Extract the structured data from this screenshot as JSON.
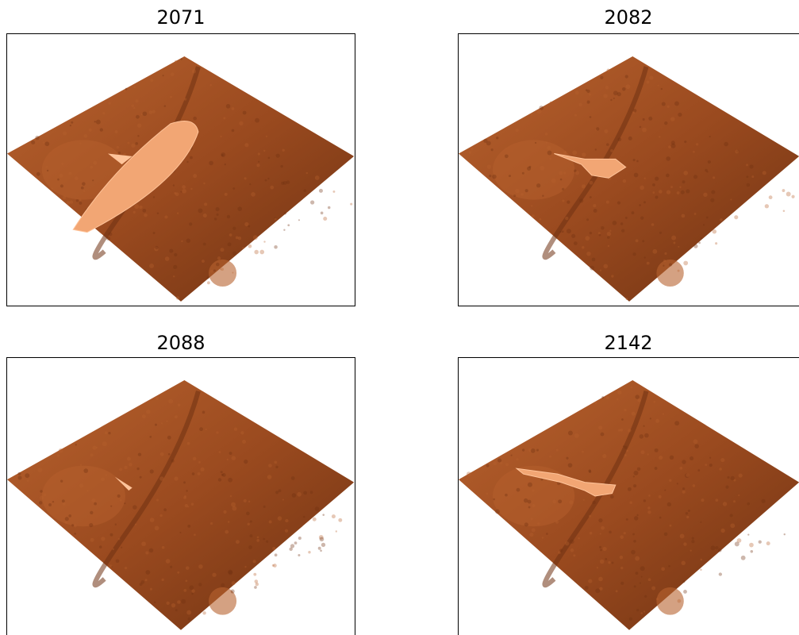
{
  "figure": {
    "panels": [
      {
        "title": "2071",
        "highlight": "large-band"
      },
      {
        "title": "2082",
        "highlight": "small-patch"
      },
      {
        "title": "2088",
        "highlight": "tiny-sliver"
      },
      {
        "title": "2142",
        "highlight": "streak"
      }
    ],
    "colors": {
      "terrain_base": "#9a4a1f",
      "terrain_dark": "#6f3212",
      "terrain_light": "#b8622e",
      "highlight": "#f2a674",
      "highlight_light": "#ffc49a",
      "axes_border": "#000000",
      "background": "#ffffff"
    }
  }
}
